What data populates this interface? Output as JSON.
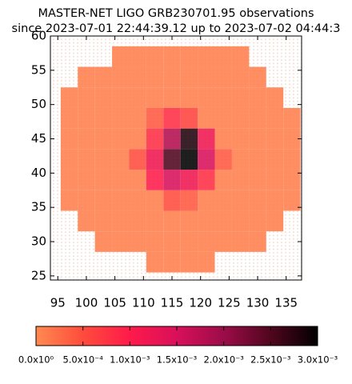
{
  "chart_data": {
    "type": "heatmap",
    "title": "MASTER-NET LIGO GRB230701.95 observations",
    "subtitle": "since 2023-07-01 22:44:39.12 up to 2023-07-02 04:44:3",
    "x": [
      97,
      100,
      103,
      106,
      109,
      112,
      115,
      118,
      121,
      124,
      127,
      130,
      133,
      136
    ],
    "y": [
      27,
      30,
      33,
      36,
      39,
      42,
      45,
      48,
      51,
      54,
      57
    ],
    "values": [
      [
        null,
        null,
        null,
        null,
        null,
        0.0001,
        0.0001,
        0.0001,
        0.0001,
        null,
        null,
        null,
        null,
        null
      ],
      [
        null,
        null,
        0.0001,
        0.0001,
        0.0001,
        0.0001,
        0.0001,
        0.0001,
        0.0001,
        0.0001,
        0.0001,
        0.0001,
        null,
        null
      ],
      [
        null,
        0.0001,
        0.0001,
        0.0001,
        0.0001,
        0.0001,
        0.0001,
        0.0001,
        0.0001,
        0.0001,
        0.0001,
        0.0001,
        0.0001,
        null
      ],
      [
        0.0001,
        0.0001,
        0.0001,
        0.0001,
        0.0001,
        0.0001,
        0.0005,
        0.0004,
        0.0001,
        0.0001,
        0.0001,
        0.0001,
        0.0001,
        0.0001
      ],
      [
        0.0001,
        0.0001,
        0.0001,
        0.0001,
        0.0001,
        0.001,
        0.0015,
        0.0012,
        0.0008,
        0.0001,
        0.0001,
        0.0001,
        0.0001,
        0.0001
      ],
      [
        0.0001,
        0.0001,
        0.0001,
        0.0001,
        0.0005,
        0.0012,
        0.0025,
        0.003,
        0.0015,
        0.0004,
        0.0001,
        0.0001,
        0.0001,
        0.0001
      ],
      [
        0.0001,
        0.0001,
        0.0001,
        0.0001,
        0.0001,
        0.0008,
        0.0018,
        0.0028,
        0.0012,
        0.0001,
        0.0001,
        0.0001,
        0.0001,
        0.0001
      ],
      [
        0.0001,
        0.0001,
        0.0001,
        0.0001,
        0.0001,
        0.0004,
        0.0008,
        0.0006,
        0.0001,
        0.0001,
        0.0001,
        0.0001,
        0.0001,
        0.0001
      ],
      [
        0.0001,
        0.0001,
        0.0001,
        0.0001,
        0.0001,
        0.0001,
        0.0001,
        0.0001,
        0.0001,
        0.0001,
        0.0001,
        0.0001,
        0.0001,
        null
      ],
      [
        null,
        0.0001,
        0.0001,
        0.0001,
        0.0001,
        0.0001,
        0.0001,
        0.0001,
        0.0001,
        0.0001,
        0.0001,
        0.0001,
        null,
        null
      ],
      [
        null,
        null,
        null,
        0.0001,
        0.0001,
        0.0001,
        0.0001,
        0.0001,
        0.0001,
        0.0001,
        0.0001,
        null,
        null,
        null
      ]
    ],
    "xlim": [
      93.7,
      137.7
    ],
    "ylim": [
      24.4,
      60
    ],
    "xticks": [
      95,
      100,
      105,
      110,
      115,
      120,
      125,
      130,
      135
    ],
    "yticks": [
      25,
      30,
      35,
      40,
      45,
      50,
      55,
      60
    ],
    "colormap": [
      "#ff8a50",
      "#ff4c3c",
      "#ff1a4a",
      "#d8105a",
      "#9c0c48",
      "#50061e",
      "#000000"
    ],
    "clim": [
      0,
      0.003
    ],
    "cticks": [
      {
        "value": 0,
        "label": "0.0x10⁰"
      },
      {
        "value": 0.0005,
        "label": "5.0x10⁻⁴"
      },
      {
        "value": 0.001,
        "label": "1.0x10⁻³"
      },
      {
        "value": 0.0015,
        "label": "1.5x10⁻³"
      },
      {
        "value": 0.002,
        "label": "2.0x10⁻³"
      },
      {
        "value": 0.0025,
        "label": "2.5x10⁻³"
      },
      {
        "value": 0.003,
        "label": "3.0x10⁻³"
      }
    ]
  }
}
